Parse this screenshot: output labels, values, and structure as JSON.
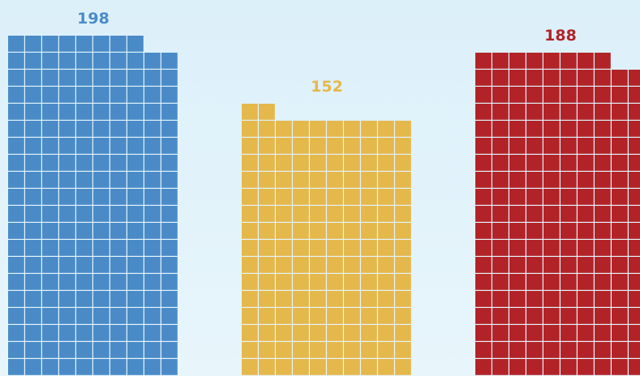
{
  "chart_data": {
    "type": "waffle",
    "units_per_row": 10,
    "values": [
      198,
      152,
      188
    ],
    "colors": [
      "#4a8bc7",
      "#e5b84c",
      "#b22328"
    ]
  }
}
